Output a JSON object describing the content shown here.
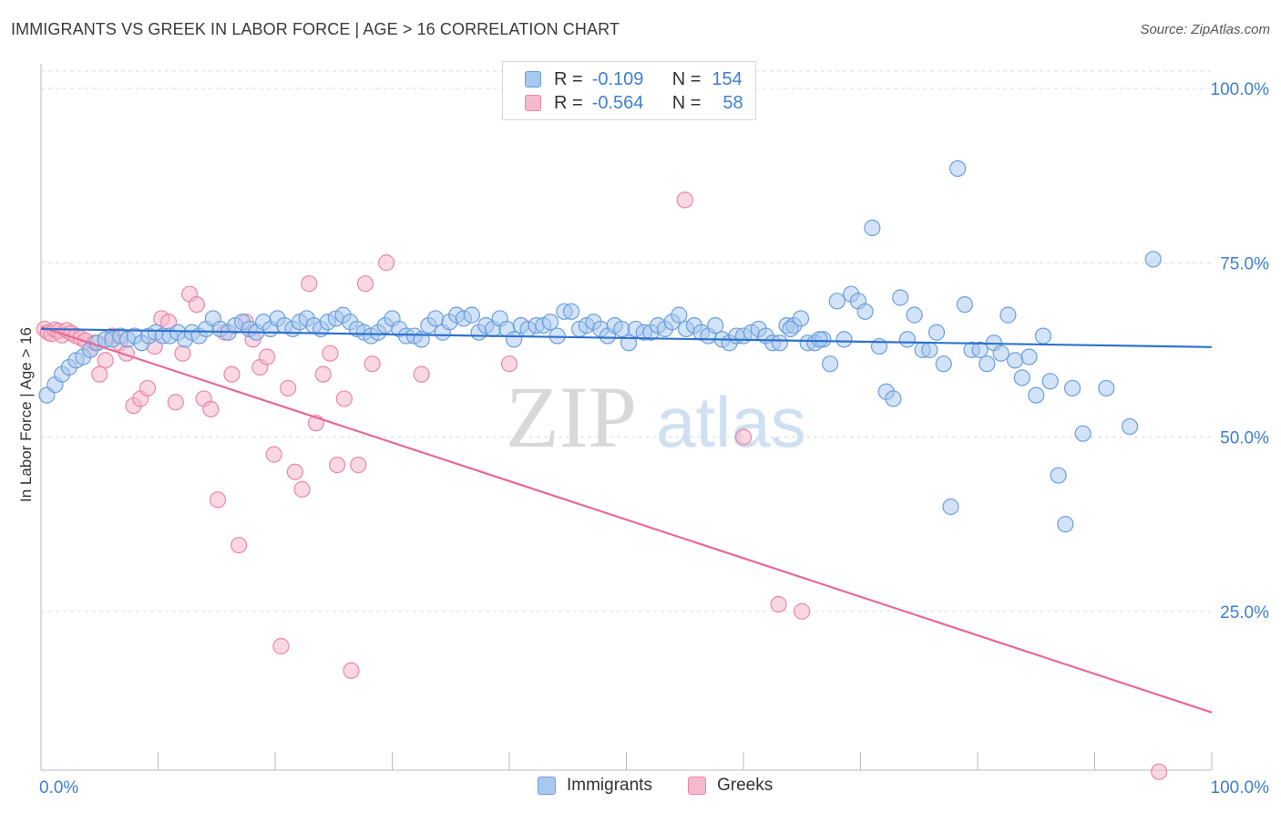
{
  "title": "IMMIGRANTS VS GREEK IN LABOR FORCE | AGE > 16 CORRELATION CHART",
  "source": "Source: ZipAtlas.com",
  "watermark": {
    "zip": "ZIP",
    "atlas": "atlas"
  },
  "legend": {
    "rows": [
      {
        "r_label": "R =",
        "r_value": "-0.109",
        "n_label": "N =",
        "n_value": "154"
      },
      {
        "r_label": "R =",
        "r_value": "-0.564",
        "n_label": "N =",
        "n_value": "58"
      }
    ]
  },
  "bottom_legend": [
    "Immigrants",
    "Greeks"
  ],
  "colors": {
    "immigrants_fill": "#a8c8f0",
    "immigrants_stroke": "#6a9fdc",
    "immigrants_line": "#2f72cc",
    "greeks_fill": "#f6b8cb",
    "greeks_stroke": "#e987a8",
    "greeks_line": "#e8689a",
    "tick_label": "#3d7fd1",
    "grid": "#dcdcdc"
  },
  "chart_data": {
    "type": "scatter",
    "title": "IMMIGRANTS VS GREEK IN LABOR FORCE | AGE > 16 CORRELATION CHART",
    "xlabel": "",
    "ylabel": "In Labor Force | Age > 16",
    "xlim": [
      0,
      100
    ],
    "ylim": [
      0,
      102
    ],
    "x_tick_labels": [
      {
        "value": 0,
        "label": "0.0%"
      },
      {
        "value": 100,
        "label": "100.0%"
      }
    ],
    "y_tick_labels": [
      {
        "value": 100,
        "label": "100.0%"
      },
      {
        "value": 75,
        "label": "75.0%"
      },
      {
        "value": 50,
        "label": "50.0%"
      },
      {
        "value": 25,
        "label": "25.0%"
      }
    ],
    "grid": true,
    "legend_position": "top-center",
    "series": [
      {
        "name": "Immigrants",
        "trend": {
          "x": [
            0,
            100
          ],
          "y": [
            65.5,
            62.9
          ]
        },
        "points": [
          [
            0.5,
            56
          ],
          [
            1.2,
            57.5
          ],
          [
            1.8,
            59
          ],
          [
            2.4,
            60
          ],
          [
            3,
            61
          ],
          [
            3.6,
            61.5
          ],
          [
            4.2,
            62.5
          ],
          [
            4.8,
            63.5
          ],
          [
            5.5,
            64
          ],
          [
            6.1,
            64
          ],
          [
            6.8,
            64.5
          ],
          [
            7.4,
            64
          ],
          [
            8,
            64.5
          ],
          [
            8.6,
            63.5
          ],
          [
            9.2,
            64.5
          ],
          [
            9.8,
            65
          ],
          [
            10.4,
            64.5
          ],
          [
            11,
            64.5
          ],
          [
            11.7,
            65
          ],
          [
            12.3,
            64
          ],
          [
            12.9,
            65
          ],
          [
            13.5,
            64.5
          ],
          [
            14.1,
            65.5
          ],
          [
            14.7,
            67
          ],
          [
            15.3,
            65.5
          ],
          [
            16,
            65
          ],
          [
            16.6,
            66
          ],
          [
            17.2,
            66.5
          ],
          [
            17.8,
            65.5
          ],
          [
            18.4,
            65
          ],
          [
            19,
            66.5
          ],
          [
            19.6,
            65.5
          ],
          [
            20.2,
            67
          ],
          [
            20.8,
            66
          ],
          [
            21.5,
            65.5
          ],
          [
            22.1,
            66.5
          ],
          [
            22.7,
            67
          ],
          [
            23.3,
            66
          ],
          [
            23.9,
            65.5
          ],
          [
            24.5,
            66.5
          ],
          [
            25.2,
            67
          ],
          [
            25.8,
            67.5
          ],
          [
            26.4,
            66.5
          ],
          [
            27,
            65.5
          ],
          [
            27.6,
            65
          ],
          [
            28.2,
            64.5
          ],
          [
            28.8,
            65
          ],
          [
            29.4,
            66
          ],
          [
            30,
            67
          ],
          [
            30.6,
            65.5
          ],
          [
            31.2,
            64.5
          ],
          [
            31.9,
            64.5
          ],
          [
            32.5,
            64
          ],
          [
            33.1,
            66
          ],
          [
            33.7,
            67
          ],
          [
            34.3,
            65
          ],
          [
            34.9,
            66.5
          ],
          [
            35.5,
            67.5
          ],
          [
            36.1,
            67
          ],
          [
            36.8,
            67.5
          ],
          [
            37.4,
            65
          ],
          [
            38,
            66
          ],
          [
            38.6,
            65.5
          ],
          [
            39.2,
            67
          ],
          [
            39.8,
            65.5
          ],
          [
            40.4,
            64
          ],
          [
            41,
            66
          ],
          [
            41.6,
            65.5
          ],
          [
            42.3,
            66
          ],
          [
            42.9,
            66
          ],
          [
            43.5,
            66.5
          ],
          [
            44.1,
            64.5
          ],
          [
            44.7,
            68
          ],
          [
            45.3,
            68
          ],
          [
            46,
            65.5
          ],
          [
            46.6,
            66
          ],
          [
            47.2,
            66.5
          ],
          [
            47.8,
            65.5
          ],
          [
            48.4,
            64.5
          ],
          [
            49,
            66
          ],
          [
            49.6,
            65.5
          ],
          [
            50.2,
            63.5
          ],
          [
            50.8,
            65.5
          ],
          [
            51.5,
            65
          ],
          [
            52.1,
            65
          ],
          [
            52.7,
            66
          ],
          [
            53.3,
            65.5
          ],
          [
            53.9,
            66.5
          ],
          [
            54.5,
            67.5
          ],
          [
            55.1,
            65.5
          ],
          [
            55.8,
            66
          ],
          [
            56.4,
            65
          ],
          [
            57,
            64.5
          ],
          [
            57.6,
            66
          ],
          [
            58.2,
            64
          ],
          [
            58.8,
            63.5
          ],
          [
            59.4,
            64.5
          ],
          [
            60,
            64.5
          ],
          [
            60.7,
            65
          ],
          [
            61.3,
            65.5
          ],
          [
            61.9,
            64.5
          ],
          [
            62.5,
            63.5
          ],
          [
            63.1,
            63.5
          ],
          [
            63.7,
            66
          ],
          [
            64.3,
            66
          ],
          [
            64.9,
            67
          ],
          [
            65.5,
            63.5
          ],
          [
            66.1,
            63.5
          ],
          [
            66.8,
            64
          ],
          [
            67.4,
            60.5
          ],
          [
            68,
            69.5
          ],
          [
            68.6,
            64
          ],
          [
            69.2,
            70.5
          ],
          [
            69.8,
            69.5
          ],
          [
            70.4,
            68
          ],
          [
            71,
            80
          ],
          [
            71.6,
            63
          ],
          [
            72.2,
            56.5
          ],
          [
            72.8,
            55.5
          ],
          [
            73.4,
            70
          ],
          [
            74,
            64
          ],
          [
            74.6,
            67.5
          ],
          [
            75.3,
            62.5
          ],
          [
            75.9,
            62.5
          ],
          [
            76.5,
            65
          ],
          [
            77.1,
            60.5
          ],
          [
            77.7,
            40
          ],
          [
            78.3,
            88.5
          ],
          [
            78.9,
            69
          ],
          [
            79.5,
            62.5
          ],
          [
            80.2,
            62.5
          ],
          [
            80.8,
            60.5
          ],
          [
            81.4,
            63.5
          ],
          [
            82,
            62
          ],
          [
            82.6,
            67.5
          ],
          [
            83.2,
            61
          ],
          [
            83.8,
            58.5
          ],
          [
            84.4,
            61.5
          ],
          [
            85,
            56
          ],
          [
            85.6,
            64.5
          ],
          [
            86.2,
            58
          ],
          [
            86.9,
            44.5
          ],
          [
            87.5,
            37.5
          ],
          [
            88.1,
            57
          ],
          [
            89,
            50.5
          ],
          [
            91,
            57
          ],
          [
            93,
            51.5
          ],
          [
            95,
            75.5
          ],
          [
            64,
            65.5
          ],
          [
            66.5,
            64
          ]
        ]
      },
      {
        "name": "Greeks",
        "trend": {
          "x": [
            0,
            100
          ],
          "y": [
            65.8,
            10.5
          ]
        },
        "points": [
          [
            0.3,
            65.5
          ],
          [
            0.6,
            65
          ],
          [
            0.9,
            64.8
          ],
          [
            1.2,
            65.4
          ],
          [
            1.5,
            65.2
          ],
          [
            1.8,
            64.6
          ],
          [
            2.2,
            65.3
          ],
          [
            2.6,
            64.9
          ],
          [
            3,
            64.5
          ],
          [
            3.4,
            64.2
          ],
          [
            3.8,
            63.8
          ],
          [
            4.2,
            62.5
          ],
          [
            4.6,
            63.5
          ],
          [
            5,
            59
          ],
          [
            5.5,
            61
          ],
          [
            6.1,
            64.5
          ],
          [
            6.7,
            63.5
          ],
          [
            7.3,
            62
          ],
          [
            7.9,
            54.5
          ],
          [
            8.5,
            55.5
          ],
          [
            9.1,
            57
          ],
          [
            9.7,
            63
          ],
          [
            10.3,
            67
          ],
          [
            10.9,
            66.5
          ],
          [
            11.5,
            55
          ],
          [
            12.1,
            62
          ],
          [
            12.7,
            70.5
          ],
          [
            13.3,
            69
          ],
          [
            13.9,
            55.5
          ],
          [
            14.5,
            54
          ],
          [
            15.1,
            41
          ],
          [
            15.7,
            65
          ],
          [
            16.3,
            59
          ],
          [
            16.9,
            34.5
          ],
          [
            17.5,
            66.5
          ],
          [
            18.1,
            64
          ],
          [
            18.7,
            60
          ],
          [
            19.3,
            61.5
          ],
          [
            19.9,
            47.5
          ],
          [
            20.5,
            20
          ],
          [
            21.1,
            57
          ],
          [
            21.7,
            45
          ],
          [
            22.3,
            42.5
          ],
          [
            22.9,
            72
          ],
          [
            23.5,
            52
          ],
          [
            24.1,
            59
          ],
          [
            24.7,
            62
          ],
          [
            25.3,
            46
          ],
          [
            25.9,
            55.5
          ],
          [
            26.5,
            16.5
          ],
          [
            27.1,
            46
          ],
          [
            27.7,
            72
          ],
          [
            28.3,
            60.5
          ],
          [
            29.5,
            75
          ],
          [
            32.5,
            59
          ],
          [
            40,
            60.5
          ],
          [
            55,
            84
          ],
          [
            60,
            50
          ],
          [
            63,
            26
          ],
          [
            65,
            25
          ],
          [
            95.5,
            2
          ]
        ]
      }
    ]
  }
}
